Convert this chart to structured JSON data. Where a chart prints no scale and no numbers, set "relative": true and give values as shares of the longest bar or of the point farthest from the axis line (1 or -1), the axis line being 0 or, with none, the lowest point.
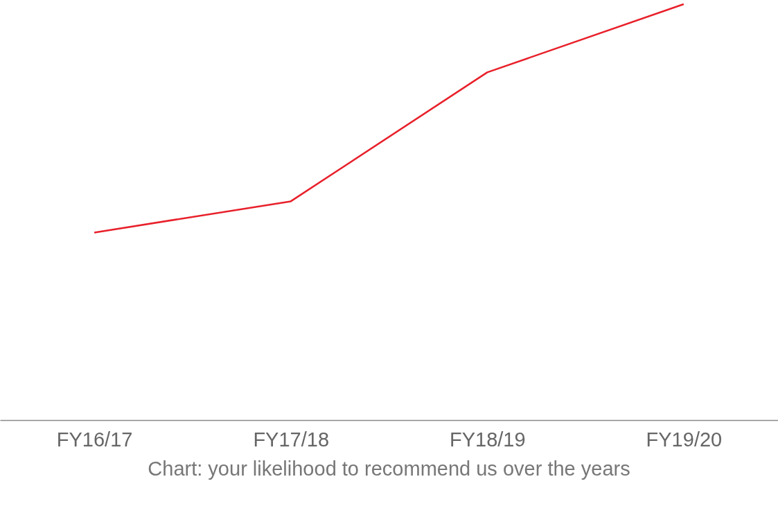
{
  "chart_data": {
    "type": "line",
    "relative": true,
    "categories": [
      "FY16/17",
      "FY17/18",
      "FY18/19",
      "FY19/20"
    ],
    "series": [
      {
        "color": "#e8202a",
        "values": [
          0.451,
          0.526,
          0.836,
          1
        ]
      }
    ],
    "grid": false,
    "legend": false,
    "marker": "none",
    "line_style": "solid",
    "annotations": [
      "Chart: your likelihood to recommend us over the years"
    ]
  }
}
